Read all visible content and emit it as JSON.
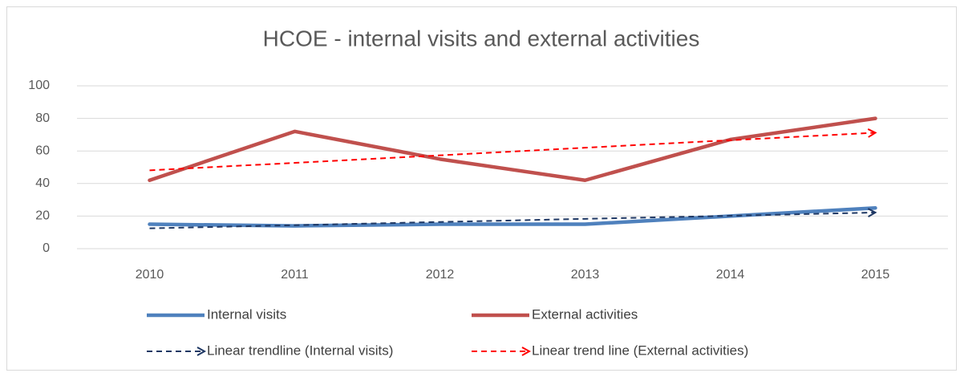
{
  "chart_data": {
    "type": "line",
    "title": "HCOE - internal visits and external activities",
    "categories": [
      "2010",
      "2011",
      "2012",
      "2013",
      "2014",
      "2015"
    ],
    "series": [
      {
        "name": "Internal visits",
        "color": "#4f81bd",
        "style": "solid",
        "values": [
          15,
          14,
          15,
          15,
          20,
          25
        ]
      },
      {
        "name": "External activities",
        "color": "#c0504d",
        "style": "solid",
        "values": [
          42,
          72,
          55,
          42,
          67,
          80
        ]
      },
      {
        "name": "Linear trendline (Internal visits)",
        "color": "#1f3864",
        "style": "dashed",
        "values": [
          12.5,
          14.4,
          16.4,
          18.3,
          20.2,
          22.2
        ]
      },
      {
        "name": "Linear trend line (External activities)",
        "color": "#ff0000",
        "style": "dashed",
        "values": [
          48.1,
          52.7,
          57.3,
          62.0,
          66.6,
          71.2
        ]
      }
    ],
    "ylim": [
      0,
      100
    ],
    "yticks": [
      0,
      20,
      40,
      60,
      80,
      100
    ],
    "grid": true,
    "legend": "bottom"
  }
}
